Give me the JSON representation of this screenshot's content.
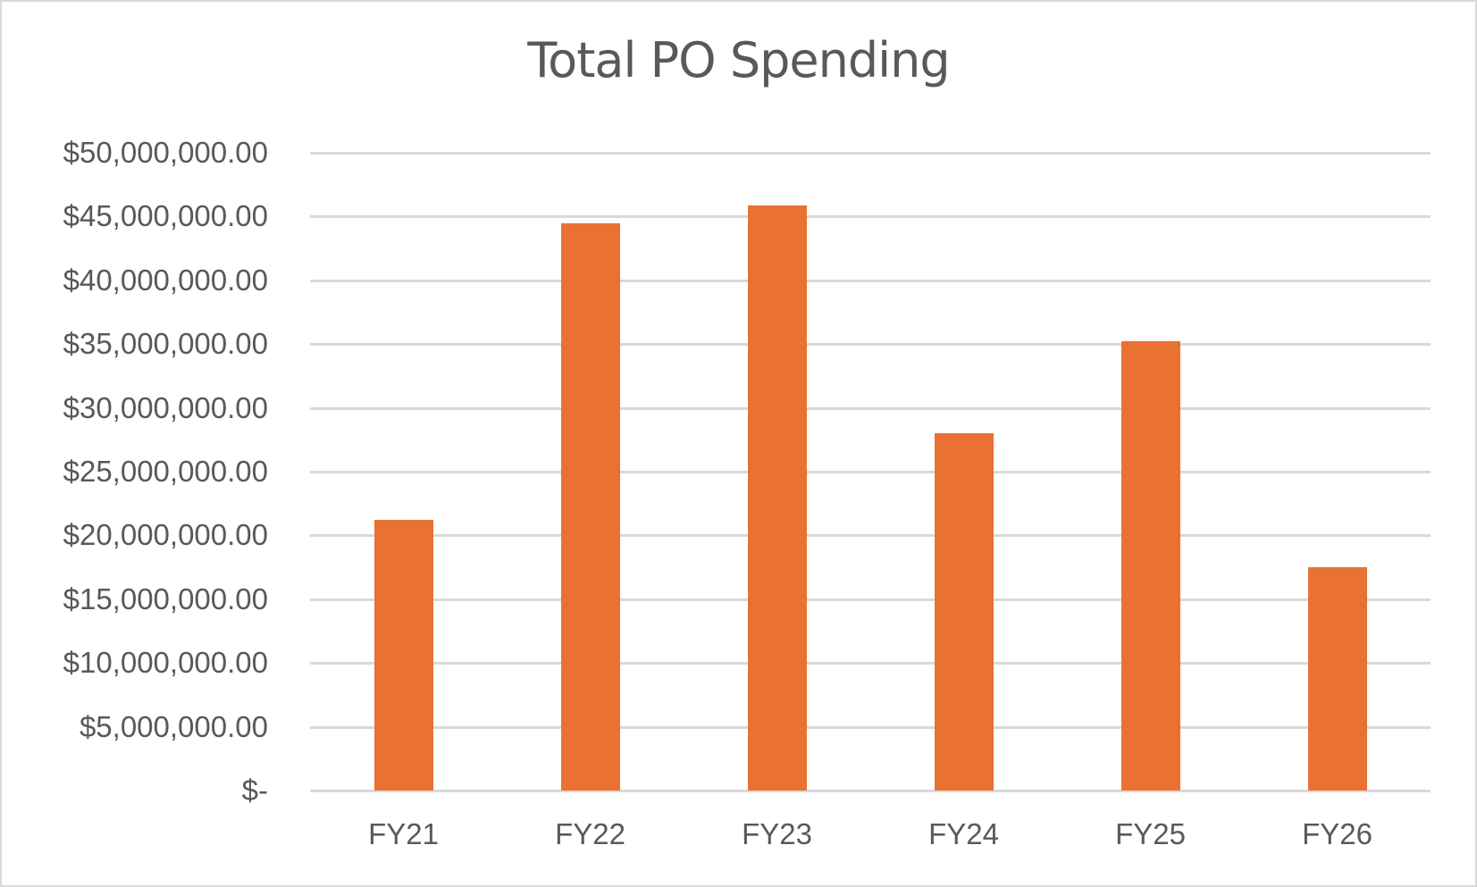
{
  "chart_data": {
    "type": "bar",
    "title": "Total PO Spending",
    "xlabel": "",
    "ylabel": "",
    "categories": [
      "FY21",
      "FY22",
      "FY23",
      "FY24",
      "FY25",
      "FY26"
    ],
    "values": [
      21200000,
      44500000,
      45900000,
      28000000,
      35200000,
      17500000
    ],
    "ylim": [
      0,
      50000000
    ],
    "yticks": [
      0,
      5000000,
      10000000,
      15000000,
      20000000,
      25000000,
      30000000,
      35000000,
      40000000,
      45000000,
      50000000
    ],
    "ytick_labels": [
      "$-",
      "$5,000,000.00",
      "$10,000,000.00",
      "$15,000,000.00",
      "$20,000,000.00",
      "$25,000,000.00",
      "$30,000,000.00",
      "$35,000,000.00",
      "$40,000,000.00",
      "$45,000,000.00",
      "$50,000,000.00"
    ],
    "grid": true,
    "legend": null,
    "bar_color": "#E97132"
  }
}
